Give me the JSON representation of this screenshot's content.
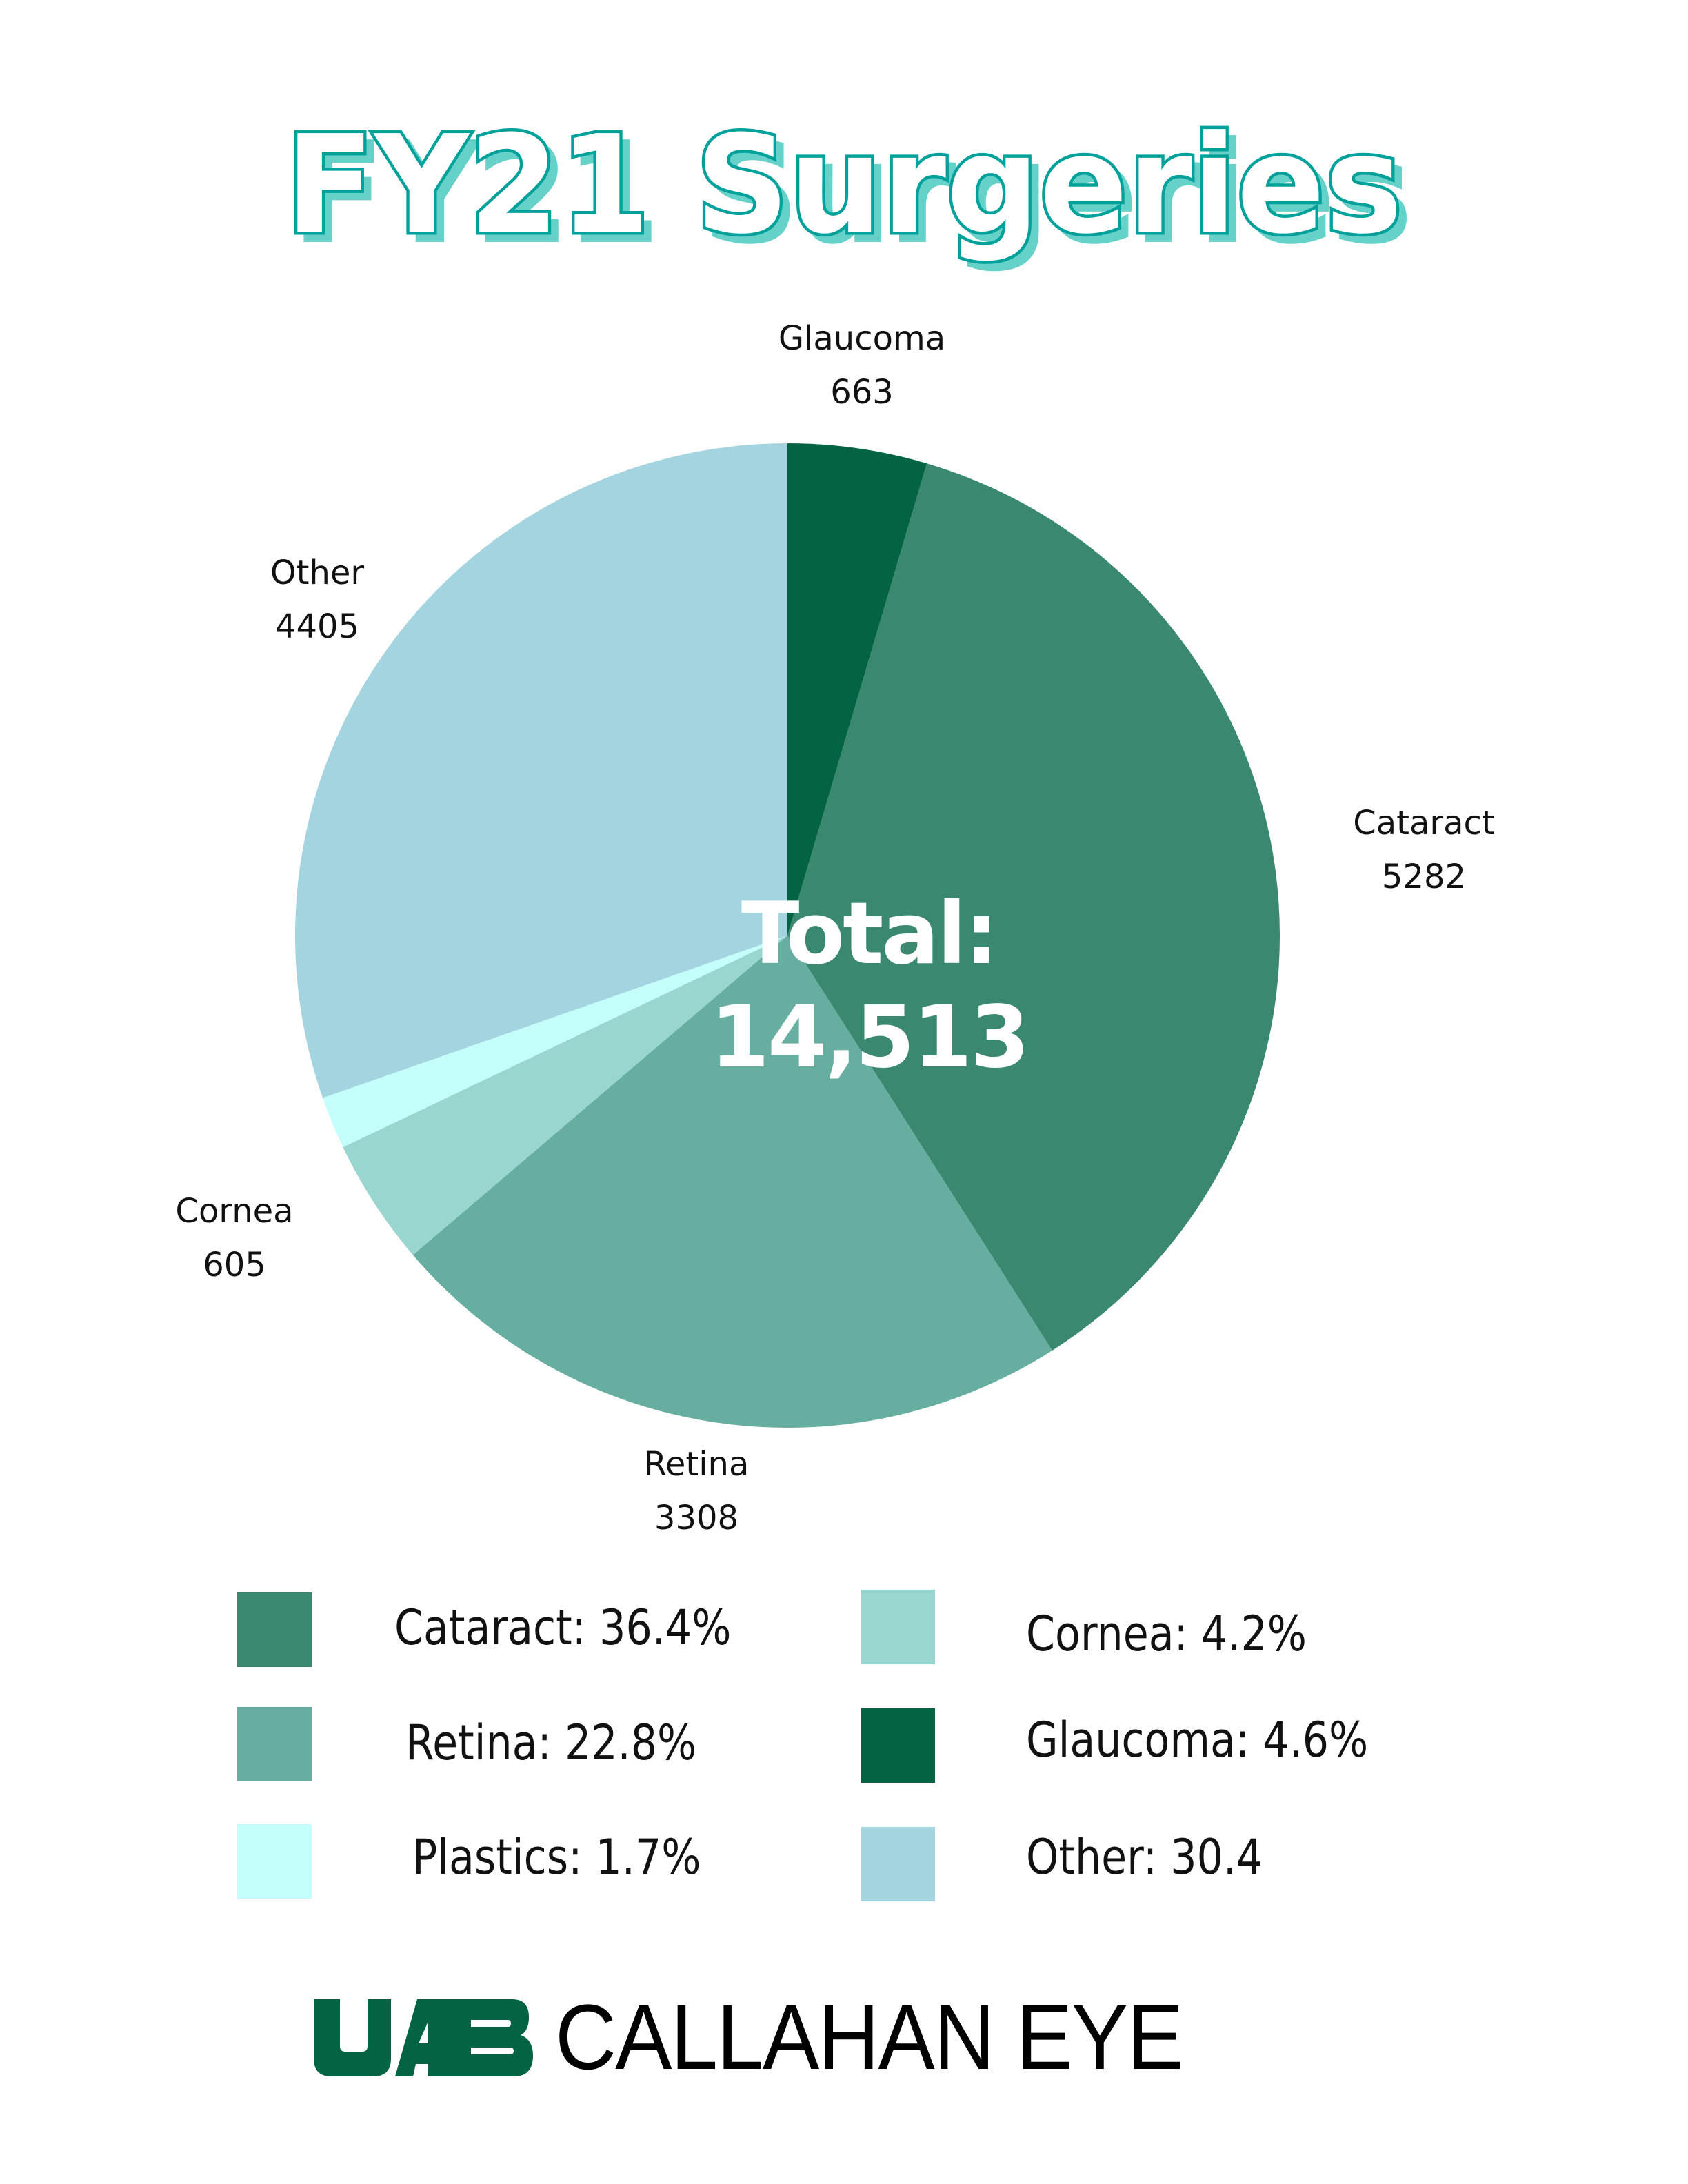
{
  "title": "FY21 Surgeries",
  "colors": {
    "title_stroke": "#00A19A",
    "title_shadow": "#66D1C9",
    "cataract": "#3A8870",
    "retina": "#66AE9F",
    "plastics": "#C4FFFC",
    "cornea": "#98D6CF",
    "glaucoma": "#036444",
    "other": "#A4D4E0",
    "logo_green": "#036444"
  },
  "center_label": "Total: 14,513",
  "slice_labels": [
    {
      "name": "Glaucoma",
      "value": "663"
    },
    {
      "name": "Cataract",
      "value": "5282"
    },
    {
      "name": "Retina",
      "value": "3308"
    },
    {
      "name": "Cornea",
      "value": "605"
    },
    {
      "name": "Other",
      "value": "4405"
    }
  ],
  "legend": [
    {
      "text": "Cataract: 36.4%",
      "color": "#3A8870"
    },
    {
      "text": "Retina: 22.8%",
      "color": "#66AE9F"
    },
    {
      "text": "Plastics: 1.7%",
      "color": "#C4FFFC"
    },
    {
      "text": "Cornea: 4.2%",
      "color": "#98D6CF"
    },
    {
      "text": "Glaucoma: 4.6%",
      "color": "#036444"
    },
    {
      "text": "Other: 30.4",
      "color": "#A4D4E0"
    }
  ],
  "logo": {
    "mark": "UAB",
    "name": "CALLAHAN EYE"
  },
  "chart_data": {
    "type": "pie",
    "title": "FY21 Surgeries",
    "total": 14513,
    "start_angle_deg": 0,
    "direction": "clockwise",
    "categories": [
      "Glaucoma",
      "Cataract",
      "Retina",
      "Cornea",
      "Plastics",
      "Other"
    ],
    "values": [
      663,
      5282,
      3308,
      605,
      250,
      4405
    ],
    "percentages": [
      4.6,
      36.4,
      22.8,
      4.2,
      1.7,
      30.4
    ],
    "colors": [
      "#036444",
      "#3A8870",
      "#66AE9F",
      "#98D6CF",
      "#C4FFFC",
      "#A4D4E0"
    ],
    "legend_position": "bottom",
    "annotations": [
      "Total: 14,513"
    ]
  }
}
